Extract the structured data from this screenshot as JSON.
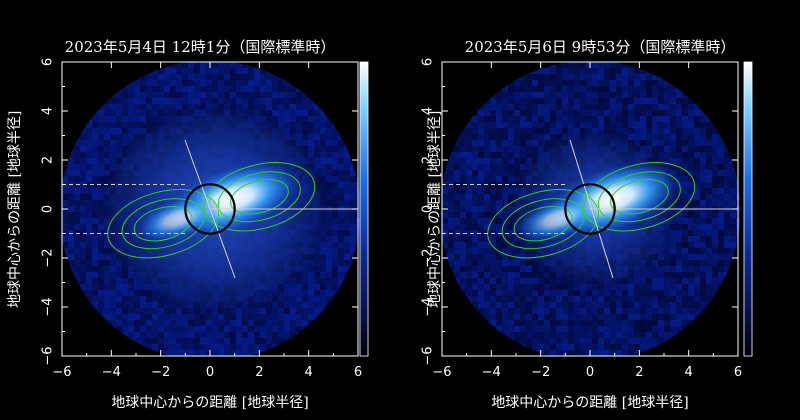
{
  "panels": [
    {
      "title": "2023年5月4日 12時1分（国際標準時）",
      "ylabel": "地球中心からの距離 [地球半径]",
      "xlabel": "地球中心からの距離 [地球半径]"
    },
    {
      "title": "2023年5月6日 9時53分（国際標準時）",
      "ylabel": "地球中心からの距離 [地球半径]",
      "xlabel": "地球中心からの距離 [地球半径]"
    }
  ],
  "axes": {
    "ticks": [
      "−6",
      "−4",
      "−2",
      "0",
      "2",
      "4",
      "6"
    ],
    "range": [
      -6,
      6
    ]
  },
  "colors": {
    "background": "#000000",
    "glow_core": "#ffffff",
    "glow_mid": "#4fb4ff",
    "glow_outer": "#1a3da8",
    "orbit_lines": "#2bd12b"
  }
}
